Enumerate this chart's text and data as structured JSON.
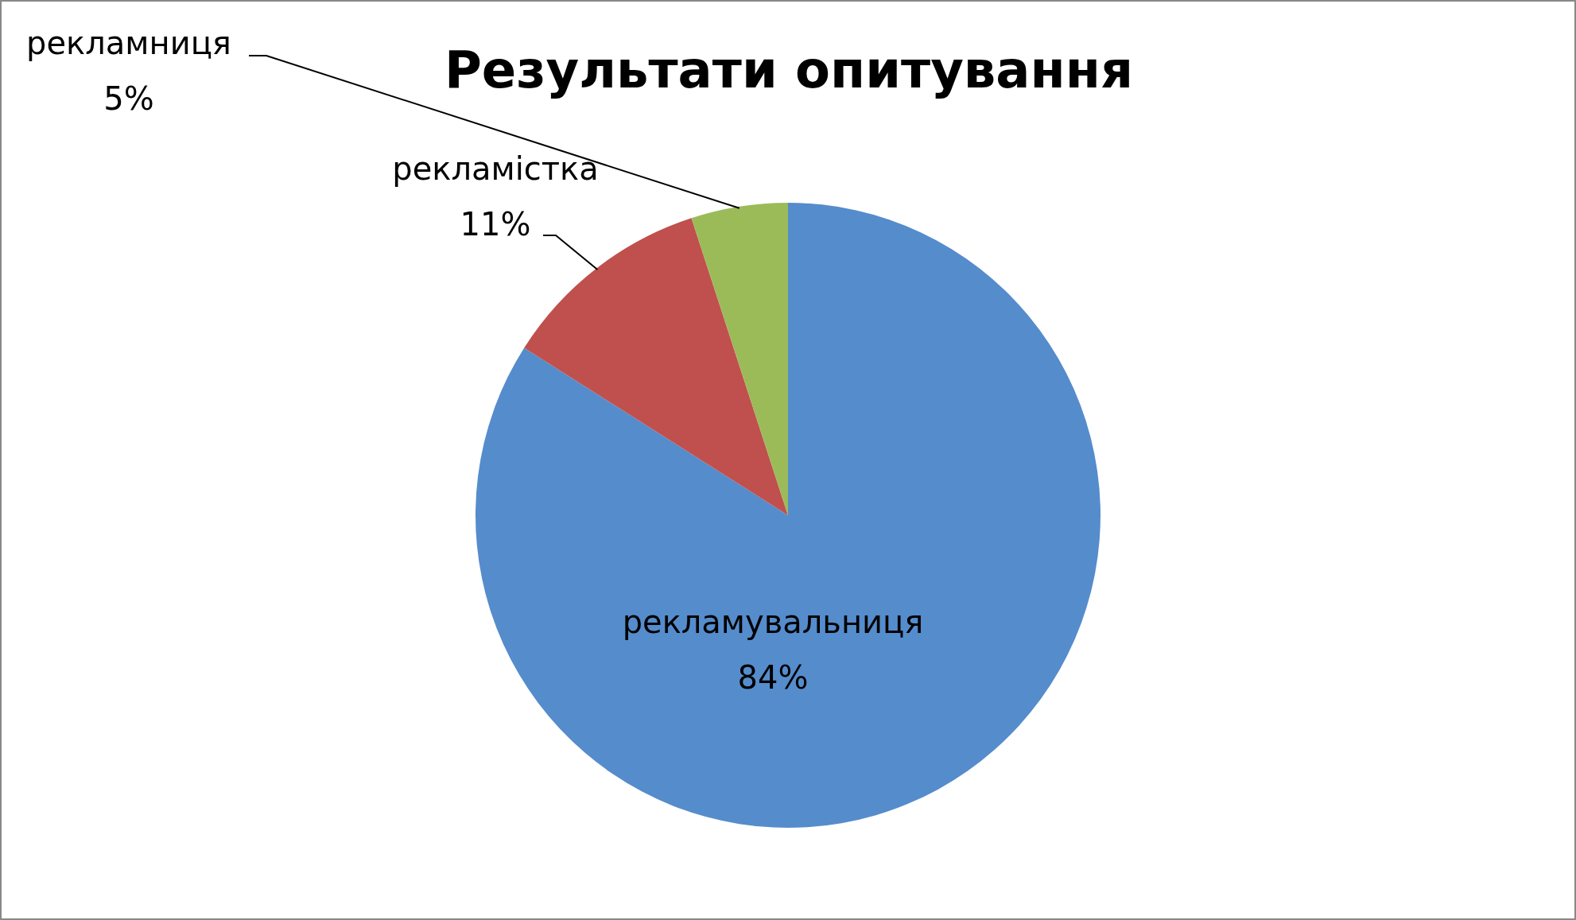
{
  "chart_data": {
    "type": "pie",
    "title": "Результати опитування",
    "categories": [
      "рекламувальниця",
      "рекламістка",
      "рекламниця"
    ],
    "values": [
      84,
      11,
      5
    ],
    "value_labels": [
      "84%",
      "11%",
      "5%"
    ],
    "colors": [
      "#558ccc",
      "#c0504d",
      "#9bbb59"
    ]
  }
}
